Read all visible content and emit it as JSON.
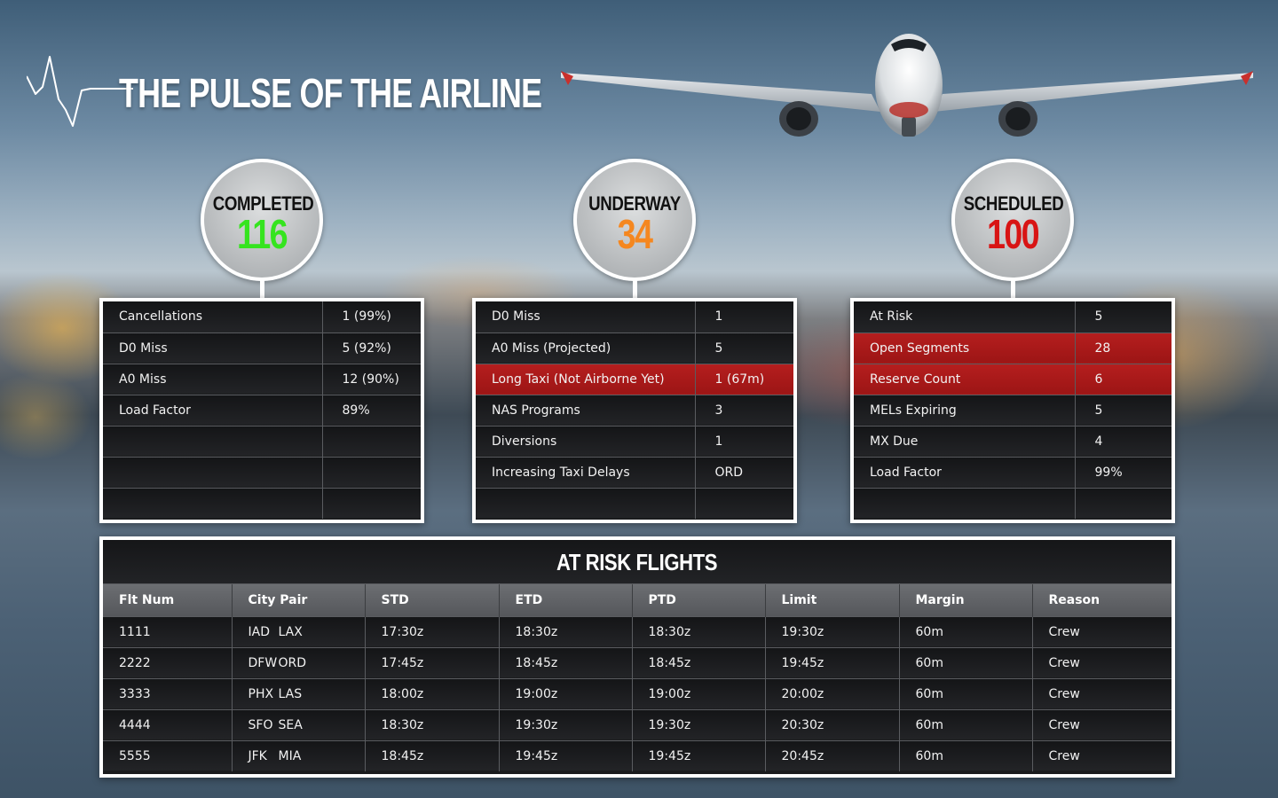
{
  "header": {
    "title": "THE PULSE OF THE AIRLINE"
  },
  "colors": {
    "completed": "#35e41f",
    "underway": "#f5871f",
    "scheduled": "#d81414",
    "alert_row": "#b51e1e"
  },
  "badges": {
    "completed": {
      "label": "COMPLETED",
      "value": "116"
    },
    "underway": {
      "label": "UNDERWAY",
      "value": "34"
    },
    "scheduled": {
      "label": "SCHEDULED",
      "value": "100"
    }
  },
  "completed_table": [
    {
      "label": "Cancellations",
      "value": "1 (99%)"
    },
    {
      "label": "D0 Miss",
      "value": "5 (92%)"
    },
    {
      "label": "A0 Miss",
      "value": "12 (90%)"
    },
    {
      "label": "Load Factor",
      "value": "89%"
    },
    {
      "label": "",
      "value": ""
    },
    {
      "label": "",
      "value": ""
    },
    {
      "label": "",
      "value": ""
    }
  ],
  "underway_table": [
    {
      "label": "D0 Miss",
      "value": "1"
    },
    {
      "label": "A0 Miss (Projected)",
      "value": "5"
    },
    {
      "label": "Long Taxi (Not Airborne Yet)",
      "value": "1 (67m)",
      "alert": true
    },
    {
      "label": "NAS Programs",
      "value": "3"
    },
    {
      "label": "Diversions",
      "value": "1"
    },
    {
      "label": "Increasing Taxi Delays",
      "value": "ORD"
    },
    {
      "label": "",
      "value": ""
    }
  ],
  "scheduled_table": [
    {
      "label": "At Risk",
      "value": "5"
    },
    {
      "label": "Open Segments",
      "value": "28",
      "alert": true
    },
    {
      "label": "Reserve Count",
      "value": "6",
      "alert": true
    },
    {
      "label": "MELs Expiring",
      "value": "5"
    },
    {
      "label": "MX Due",
      "value": "4"
    },
    {
      "label": "Load Factor",
      "value": "99%"
    },
    {
      "label": "",
      "value": ""
    }
  ],
  "at_risk": {
    "title": "AT RISK FLIGHTS",
    "columns": [
      "Flt Num",
      "City Pair",
      "STD",
      "ETD",
      "PTD",
      "Limit",
      "Margin",
      "Reason"
    ],
    "rows": [
      {
        "flt": "1111",
        "from": "IAD",
        "to": "LAX",
        "std": "17:30z",
        "etd": "18:30z",
        "ptd": "18:30z",
        "limit": "19:30z",
        "margin": "60m",
        "reason": "Crew"
      },
      {
        "flt": "2222",
        "from": "DFW",
        "to": "ORD",
        "std": "17:45z",
        "etd": "18:45z",
        "ptd": "18:45z",
        "limit": "19:45z",
        "margin": "60m",
        "reason": "Crew"
      },
      {
        "flt": "3333",
        "from": "PHX",
        "to": "LAS",
        "std": "18:00z",
        "etd": "19:00z",
        "ptd": "19:00z",
        "limit": "20:00z",
        "margin": "60m",
        "reason": "Crew"
      },
      {
        "flt": "4444",
        "from": "SFO",
        "to": "SEA",
        "std": "18:30z",
        "etd": "19:30z",
        "ptd": "19:30z",
        "limit": "20:30z",
        "margin": "60m",
        "reason": "Crew"
      },
      {
        "flt": "5555",
        "from": "JFK",
        "to": "MIA",
        "std": "18:45z",
        "etd": "19:45z",
        "ptd": "19:45z",
        "limit": "20:45z",
        "margin": "60m",
        "reason": "Crew"
      }
    ]
  }
}
